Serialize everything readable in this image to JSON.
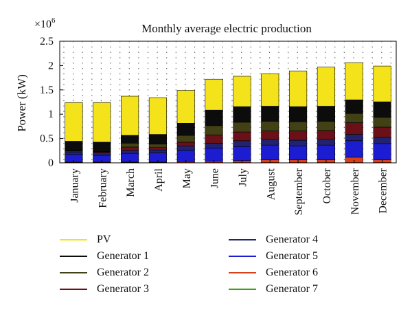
{
  "chart_data": {
    "type": "bar",
    "stacked": true,
    "title": "Monthly average electric production",
    "ylabel": "Power (kW)",
    "xlabel": "",
    "y_multiplier_label": "×10",
    "y_multiplier_exponent": "6",
    "ylim": [
      0,
      2.5
    ],
    "yticks": [
      0,
      0.5,
      1,
      1.5,
      2,
      2.5
    ],
    "ytick_labels": [
      "0",
      "0.5",
      "1",
      "1.5",
      "2",
      "2.5"
    ],
    "grid": "dotted",
    "legend_position": "bottom",
    "categories": [
      "January",
      "February",
      "March",
      "April",
      "May",
      "June",
      "July",
      "August",
      "September",
      "October",
      "November",
      "December"
    ],
    "series": [
      {
        "name": "Generator 7",
        "color": "#3aa01a",
        "values": [
          0.005,
          0.005,
          0.005,
          0.005,
          0.005,
          0.005,
          0.005,
          0.005,
          0.005,
          0.005,
          0.005,
          0.005
        ]
      },
      {
        "name": "Generator 6",
        "color": "#d8401a",
        "values": [
          0.01,
          0.01,
          0.01,
          0.01,
          0.02,
          0.03,
          0.04,
          0.06,
          0.06,
          0.06,
          0.11,
          0.06
        ]
      },
      {
        "name": "Generator 5",
        "color": "#1c1cd0",
        "values": [
          0.16,
          0.14,
          0.18,
          0.19,
          0.23,
          0.27,
          0.29,
          0.3,
          0.28,
          0.3,
          0.34,
          0.33
        ]
      },
      {
        "name": "Generator 4",
        "color": "#22226e",
        "values": [
          0.05,
          0.05,
          0.06,
          0.06,
          0.09,
          0.1,
          0.12,
          0.12,
          0.12,
          0.12,
          0.13,
          0.13
        ]
      },
      {
        "name": "Generator 3",
        "color": "#6a1018",
        "values": [
          0.02,
          0.02,
          0.07,
          0.05,
          0.08,
          0.17,
          0.18,
          0.17,
          0.19,
          0.18,
          0.24,
          0.21
        ]
      },
      {
        "name": "Generator 2",
        "color": "#424015",
        "values": [
          0.01,
          0.01,
          0.08,
          0.07,
          0.14,
          0.19,
          0.2,
          0.2,
          0.19,
          0.19,
          0.19,
          0.2
        ]
      },
      {
        "name": "Generator 1",
        "color": "#0c0c0c",
        "values": [
          0.19,
          0.19,
          0.16,
          0.2,
          0.25,
          0.32,
          0.32,
          0.31,
          0.31,
          0.31,
          0.28,
          0.32
        ]
      },
      {
        "name": "PV",
        "color": "#f4e21a",
        "values": [
          0.795,
          0.815,
          0.805,
          0.755,
          0.675,
          0.635,
          0.625,
          0.665,
          0.735,
          0.805,
          0.765,
          0.735
        ]
      }
    ],
    "legend_order": [
      "PV",
      "Generator 1",
      "Generator 2",
      "Generator 3",
      "Generator 4",
      "Generator 5",
      "Generator 6",
      "Generator 7"
    ]
  }
}
